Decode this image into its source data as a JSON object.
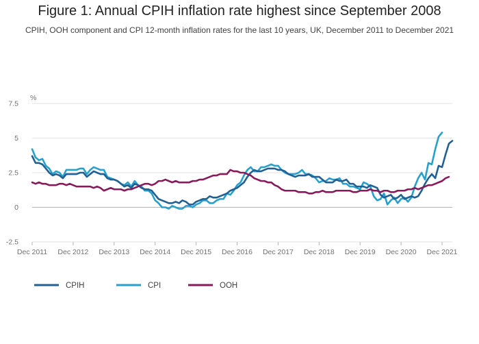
{
  "chart_data": {
    "type": "line",
    "title": "Figure 1: Annual CPIH inflation rate highest since September 2008",
    "subtitle": "CPIH, OOH component and CPI 12-month inflation rates for the last 10 years, UK, December 2011 to December 2021",
    "ylabel": "%",
    "xlabel": "",
    "ylim": [
      -2.5,
      7.5
    ],
    "yticks": [
      "-2.5",
      "0",
      "2.5",
      "5",
      "7.5"
    ],
    "yticks_values": [
      -2.5,
      0,
      2.5,
      5,
      7.5
    ],
    "xticks": [
      "Dec 2011",
      "Dec 2012",
      "Dec 2013",
      "Dec 2014",
      "Dec 2015",
      "Dec 2016",
      "Dec 2017",
      "Dec 2018",
      "Dec 2019",
      "Dec 2020",
      "Dec 2021"
    ],
    "x_start": "Dec 2011",
    "x_step": "1 month",
    "legend_position": "bottom-left",
    "grid": "horizontal",
    "series": [
      {
        "name": "CPIH",
        "color": "#206095",
        "values": [
          3.7,
          3.2,
          3.2,
          3.1,
          2.8,
          2.5,
          2.3,
          2.4,
          2.3,
          2.1,
          2.4,
          2.4,
          2.4,
          2.4,
          2.5,
          2.5,
          2.2,
          2.4,
          2.6,
          2.5,
          2.4,
          2.4,
          2.1,
          2.0,
          2.0,
          1.9,
          1.7,
          1.5,
          1.6,
          1.4,
          1.7,
          1.6,
          1.4,
          1.3,
          1.3,
          1.2,
          0.9,
          0.6,
          0.5,
          0.4,
          0.3,
          0.3,
          0.4,
          0.3,
          0.5,
          0.4,
          0.2,
          0.2,
          0.4,
          0.5,
          0.6,
          0.6,
          0.8,
          0.7,
          0.7,
          0.8,
          0.9,
          1.0,
          1.2,
          1.3,
          1.4,
          1.6,
          1.8,
          2.2,
          2.5,
          2.7,
          2.6,
          2.6,
          2.7,
          2.8,
          2.8,
          2.8,
          2.7,
          2.7,
          2.6,
          2.4,
          2.3,
          2.2,
          2.3,
          2.3,
          2.3,
          2.4,
          2.2,
          2.2,
          2.2,
          2.0,
          1.8,
          1.8,
          1.8,
          2.0,
          1.9,
          1.9,
          2.0,
          1.7,
          1.7,
          1.5,
          1.5,
          1.5,
          1.4,
          1.6,
          1.5,
          1.4,
          0.9,
          0.7,
          0.8,
          0.9,
          0.6,
          0.7,
          0.9,
          0.6,
          0.7,
          0.8,
          0.7,
          0.8,
          1.2,
          1.7,
          2.1,
          2.4,
          2.1,
          3.0,
          2.9,
          3.8,
          4.6,
          4.8
        ]
      },
      {
        "name": "CPI",
        "color": "#27a0cc",
        "values": [
          4.2,
          3.6,
          3.4,
          3.5,
          3.0,
          2.8,
          2.4,
          2.6,
          2.5,
          2.2,
          2.7,
          2.7,
          2.7,
          2.7,
          2.8,
          2.8,
          2.4,
          2.7,
          2.9,
          2.8,
          2.7,
          2.7,
          2.2,
          2.1,
          2.0,
          1.9,
          1.7,
          1.6,
          1.8,
          1.5,
          1.9,
          1.6,
          1.5,
          1.2,
          1.2,
          1.0,
          0.5,
          0.3,
          0.0,
          0.0,
          -0.1,
          0.1,
          0.0,
          -0.1,
          -0.1,
          0.1,
          0.1,
          0.0,
          0.2,
          0.3,
          0.5,
          0.5,
          0.3,
          0.3,
          0.5,
          0.6,
          0.6,
          1.0,
          0.9,
          1.2,
          1.6,
          1.8,
          2.3,
          2.7,
          2.9,
          2.6,
          2.6,
          2.9,
          2.9,
          3.0,
          3.1,
          3.0,
          3.0,
          2.7,
          2.5,
          2.4,
          2.4,
          2.4,
          2.5,
          2.7,
          2.4,
          2.4,
          2.3,
          2.1,
          1.8,
          1.9,
          1.9,
          2.1,
          2.0,
          2.0,
          2.1,
          1.7,
          1.7,
          1.5,
          1.5,
          1.4,
          1.3,
          1.8,
          1.7,
          1.5,
          0.8,
          0.5,
          0.6,
          1.0,
          0.2,
          0.5,
          0.7,
          0.3,
          0.6,
          0.7,
          0.4,
          0.7,
          1.5,
          2.1,
          2.5,
          2.0,
          3.2,
          3.1,
          4.2,
          5.1,
          5.4
        ]
      },
      {
        "name": "OOH",
        "color": "#871a5b",
        "values": [
          1.8,
          1.7,
          1.8,
          1.7,
          1.7,
          1.6,
          1.6,
          1.6,
          1.7,
          1.7,
          1.6,
          1.7,
          1.6,
          1.5,
          1.5,
          1.5,
          1.5,
          1.5,
          1.4,
          1.5,
          1.4,
          1.2,
          1.3,
          1.4,
          1.3,
          1.3,
          1.3,
          1.2,
          1.3,
          1.3,
          1.4,
          1.5,
          1.6,
          1.7,
          1.7,
          1.6,
          1.7,
          1.9,
          1.9,
          2.0,
          1.9,
          1.8,
          1.9,
          1.8,
          1.8,
          1.8,
          1.8,
          1.9,
          1.9,
          2.0,
          2.0,
          2.1,
          2.2,
          2.3,
          2.3,
          2.4,
          2.4,
          2.4,
          2.7,
          2.6,
          2.6,
          2.5,
          2.5,
          2.4,
          2.3,
          2.1,
          2.0,
          1.9,
          1.9,
          1.8,
          1.8,
          1.6,
          1.5,
          1.3,
          1.2,
          1.2,
          1.2,
          1.2,
          1.1,
          1.1,
          1.1,
          1.0,
          1.0,
          1.1,
          1.1,
          1.2,
          1.1,
          1.1,
          1.1,
          1.2,
          1.2,
          1.2,
          1.2,
          1.2,
          1.1,
          1.1,
          1.2,
          1.2,
          1.2,
          1.3,
          1.2,
          1.2,
          1.1,
          1.2,
          1.2,
          1.1,
          1.1,
          1.2,
          1.2,
          1.2,
          1.3,
          1.3,
          1.4,
          1.3,
          1.4,
          1.5,
          1.6,
          1.6,
          1.7,
          1.8,
          1.9,
          2.1,
          2.2
        ]
      }
    ]
  }
}
